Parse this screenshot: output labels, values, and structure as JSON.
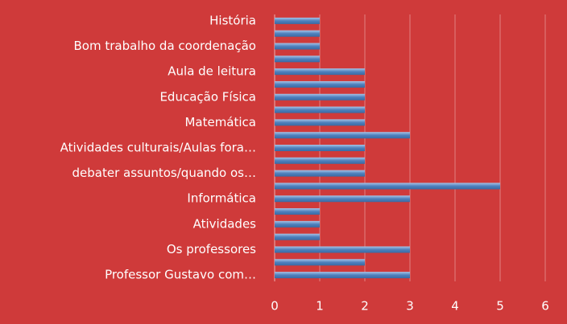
{
  "chart_data": {
    "type": "barh",
    "categories": [
      "História",
      null,
      "Bom trabalho da coordenação",
      null,
      "Aula de leitura",
      null,
      "Educação Física",
      null,
      "Matemática",
      null,
      "Atividades culturais/Aulas fora…",
      null,
      "debater assuntos/quando os…",
      null,
      "Informática",
      null,
      "Atividades",
      null,
      "Os professores",
      null,
      "Professor Gustavo com…"
    ],
    "values": [
      1,
      1,
      1,
      1,
      2,
      2,
      2,
      2,
      2,
      3,
      2,
      2,
      2,
      5,
      3,
      1,
      1,
      1,
      3,
      2,
      3
    ],
    "color": "#4f81bd",
    "xlim": [
      0,
      6
    ],
    "xticks": [
      0,
      1,
      2,
      3,
      4,
      5,
      6
    ],
    "grid": true
  }
}
